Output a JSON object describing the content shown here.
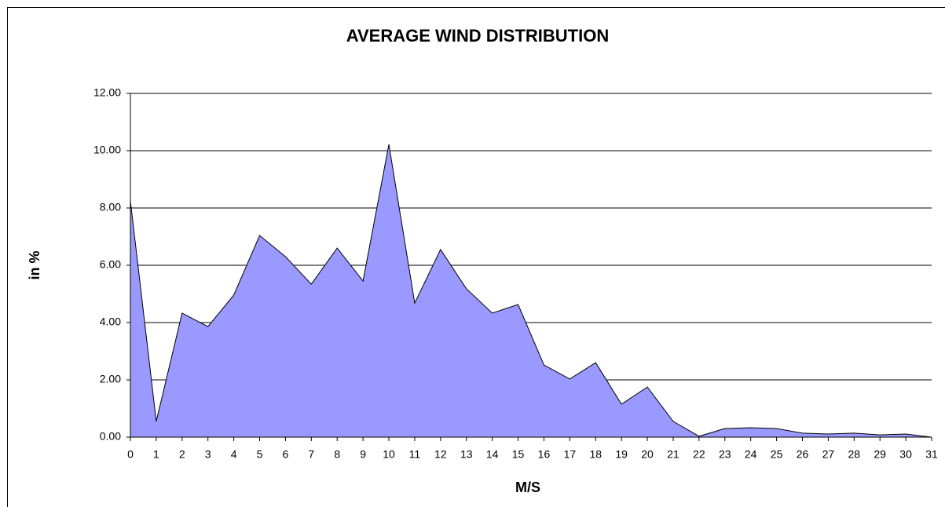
{
  "chart_data": {
    "type": "area",
    "title": "AVERAGE WIND DISTRIBUTION",
    "x_label": "M/S",
    "y_label": "in %",
    "x": [
      0,
      1,
      2,
      3,
      4,
      5,
      6,
      7,
      8,
      9,
      10,
      11,
      12,
      13,
      14,
      15,
      16,
      17,
      18,
      19,
      20,
      21,
      22,
      23,
      24,
      25,
      26,
      27,
      28,
      29,
      30,
      31
    ],
    "series": [
      {
        "name": "in %",
        "color": "#9999ff",
        "values": [
          8.25,
          0.55,
          4.33,
          3.86,
          4.96,
          7.04,
          6.3,
          5.34,
          6.6,
          5.45,
          10.22,
          4.68,
          6.55,
          5.18,
          4.33,
          4.63,
          2.52,
          2.03,
          2.6,
          1.15,
          1.75,
          0.55,
          0.03,
          0.3,
          0.33,
          0.3,
          0.14,
          0.11,
          0.14,
          0.08,
          0.11,
          0.0
        ]
      }
    ],
    "xlim": [
      0,
      31
    ],
    "xticks": [
      0,
      1,
      2,
      3,
      4,
      5,
      6,
      7,
      8,
      9,
      10,
      11,
      12,
      13,
      14,
      15,
      16,
      17,
      18,
      19,
      20,
      21,
      22,
      23,
      24,
      25,
      26,
      27,
      28,
      29,
      30,
      31
    ],
    "ylim": [
      0,
      12
    ],
    "yticks": [
      {
        "value": 0,
        "label": "0.00"
      },
      {
        "value": 2,
        "label": "2.00"
      },
      {
        "value": 4,
        "label": "4.00"
      },
      {
        "value": 6,
        "label": "6.00"
      },
      {
        "value": 8,
        "label": "8.00"
      },
      {
        "value": 10,
        "label": "10.00"
      },
      {
        "value": 12,
        "label": "12.00"
      }
    ],
    "grid": true
  }
}
